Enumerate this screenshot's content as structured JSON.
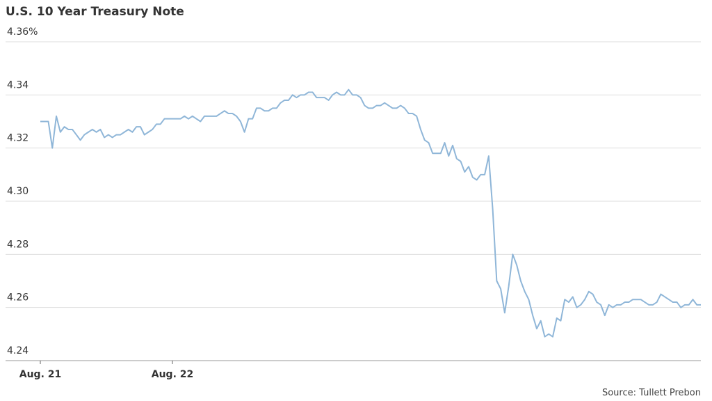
{
  "chart_data": {
    "type": "line",
    "title": "U.S. 10 Year Treasury Note",
    "source": "Source: Tullett Prebon",
    "categories": [
      "Aug. 21",
      null,
      null,
      null,
      null,
      null,
      null,
      null,
      null,
      null,
      null,
      null,
      null,
      null,
      null,
      null,
      null,
      null,
      null,
      null,
      null,
      null,
      null,
      null,
      null,
      null,
      null,
      null,
      null,
      null,
      null,
      null,
      null,
      "Aug. 22",
      null,
      null,
      null,
      null,
      null,
      null,
      null,
      null,
      null,
      null,
      null,
      null,
      null,
      null,
      null,
      null,
      null,
      null,
      null,
      null,
      null,
      null,
      null,
      null,
      null,
      null,
      null,
      null,
      null,
      null,
      null,
      null,
      null,
      null,
      null,
      null,
      null,
      null,
      null,
      null,
      null,
      null,
      null,
      null,
      null,
      null,
      null,
      null,
      null,
      null,
      null,
      null,
      null,
      null,
      null,
      null,
      null,
      null,
      null,
      null,
      null,
      null,
      null,
      null,
      null,
      null,
      null,
      null,
      null,
      null,
      null,
      null,
      null,
      null,
      null,
      null,
      null,
      null,
      null,
      null,
      null,
      null,
      null,
      null,
      null,
      null,
      null,
      null,
      null,
      null,
      null,
      null,
      null,
      null,
      null,
      null,
      null,
      null,
      null,
      null,
      null,
      null,
      null,
      null,
      null,
      null,
      null,
      null,
      null,
      null,
      null,
      null,
      null,
      null,
      null,
      null,
      null,
      null,
      null,
      null,
      null,
      null,
      null,
      null,
      null,
      null,
      null,
      null,
      null,
      null,
      null,
      null
    ],
    "values": [
      4.33,
      4.33,
      4.33,
      4.32,
      4.332,
      4.326,
      4.328,
      4.327,
      4.327,
      4.325,
      4.323,
      4.325,
      4.326,
      4.327,
      4.326,
      4.327,
      4.324,
      4.325,
      4.324,
      4.325,
      4.325,
      4.326,
      4.327,
      4.326,
      4.328,
      4.328,
      4.325,
      4.326,
      4.327,
      4.329,
      4.329,
      4.331,
      4.331,
      4.331,
      4.331,
      4.331,
      4.332,
      4.331,
      4.332,
      4.331,
      4.33,
      4.332,
      4.332,
      4.332,
      4.332,
      4.333,
      4.334,
      4.333,
      4.333,
      4.332,
      4.33,
      4.326,
      4.331,
      4.331,
      4.335,
      4.335,
      4.334,
      4.334,
      4.335,
      4.335,
      4.337,
      4.338,
      4.338,
      4.34,
      4.339,
      4.34,
      4.34,
      4.341,
      4.341,
      4.339,
      4.339,
      4.339,
      4.338,
      4.34,
      4.341,
      4.34,
      4.34,
      4.342,
      4.34,
      4.34,
      4.339,
      4.336,
      4.335,
      4.335,
      4.336,
      4.336,
      4.337,
      4.336,
      4.335,
      4.335,
      4.336,
      4.335,
      4.333,
      4.333,
      4.332,
      4.327,
      4.323,
      4.322,
      4.318,
      4.318,
      4.318,
      4.322,
      4.317,
      4.321,
      4.316,
      4.315,
      4.311,
      4.313,
      4.309,
      4.308,
      4.31,
      4.31,
      4.317,
      4.297,
      4.27,
      4.267,
      4.258,
      4.268,
      4.28,
      4.276,
      4.27,
      4.266,
      4.263,
      4.257,
      4.252,
      4.255,
      4.249,
      4.25,
      4.249,
      4.256,
      4.255,
      4.263,
      4.262,
      4.264,
      4.26,
      4.261,
      4.263,
      4.266,
      4.265,
      4.262,
      4.261,
      4.257,
      4.261,
      4.26,
      4.261,
      4.261,
      4.262,
      4.262,
      4.263,
      4.263,
      4.263,
      4.262,
      4.261,
      4.261,
      4.262,
      4.265,
      4.264,
      4.263,
      4.262,
      4.262,
      4.26,
      4.261,
      4.261,
      4.263,
      4.261,
      4.261
    ],
    "color": "#8fb6d8",
    "ylim": [
      4.24,
      4.36
    ],
    "yticks": [
      4.24,
      4.26,
      4.28,
      {
        "value": 4.3,
        "label": "4.30"
      },
      4.32,
      4.34,
      {
        "value": 4.36,
        "label": "4.36%"
      }
    ],
    "grid": true
  }
}
